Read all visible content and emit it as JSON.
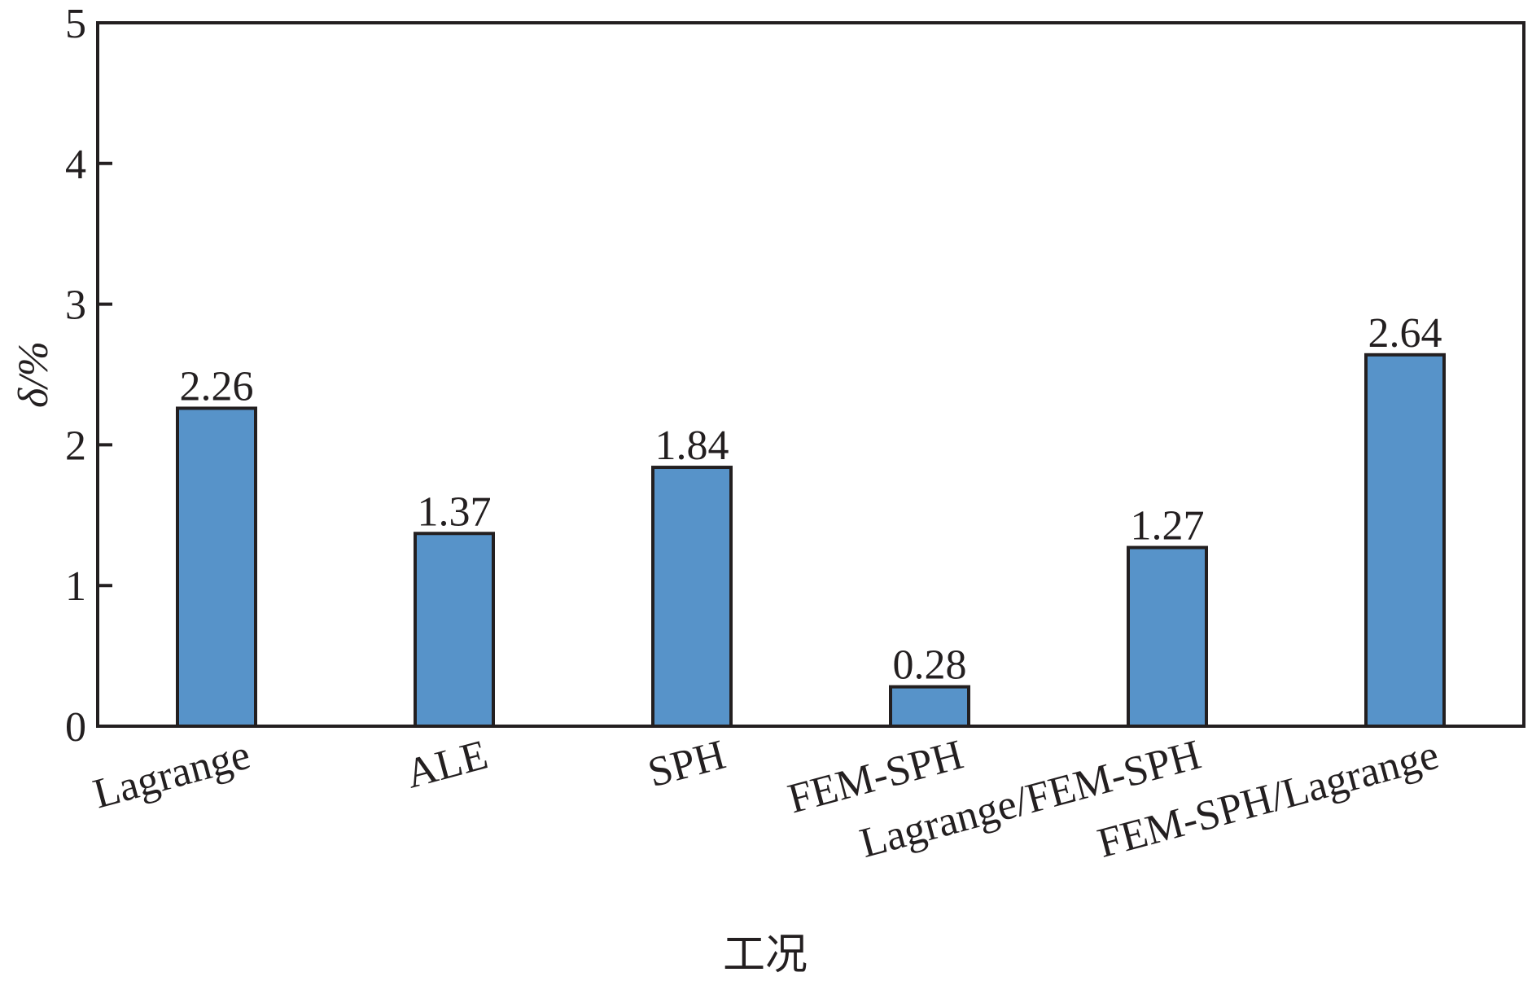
{
  "chart_data": {
    "type": "bar",
    "categories": [
      "Lagrange",
      "ALE",
      "SPH",
      "FEM-SPH",
      "Lagrange/FEM-SPH",
      "FEM-SPH/Lagrange"
    ],
    "values": [
      2.26,
      1.37,
      1.84,
      0.28,
      1.27,
      2.64
    ],
    "data_labels": [
      "2.26",
      "1.37",
      "1.84",
      "0.28",
      "1.27",
      "2.64"
    ],
    "title": "",
    "xlabel": "工况",
    "ylabel": "δ/%",
    "ylim": [
      0,
      5
    ],
    "yticks": [
      "0",
      "1",
      "2",
      "3",
      "4",
      "5"
    ],
    "bar_color": "#5793c9",
    "grid": false,
    "legend": "none"
  }
}
